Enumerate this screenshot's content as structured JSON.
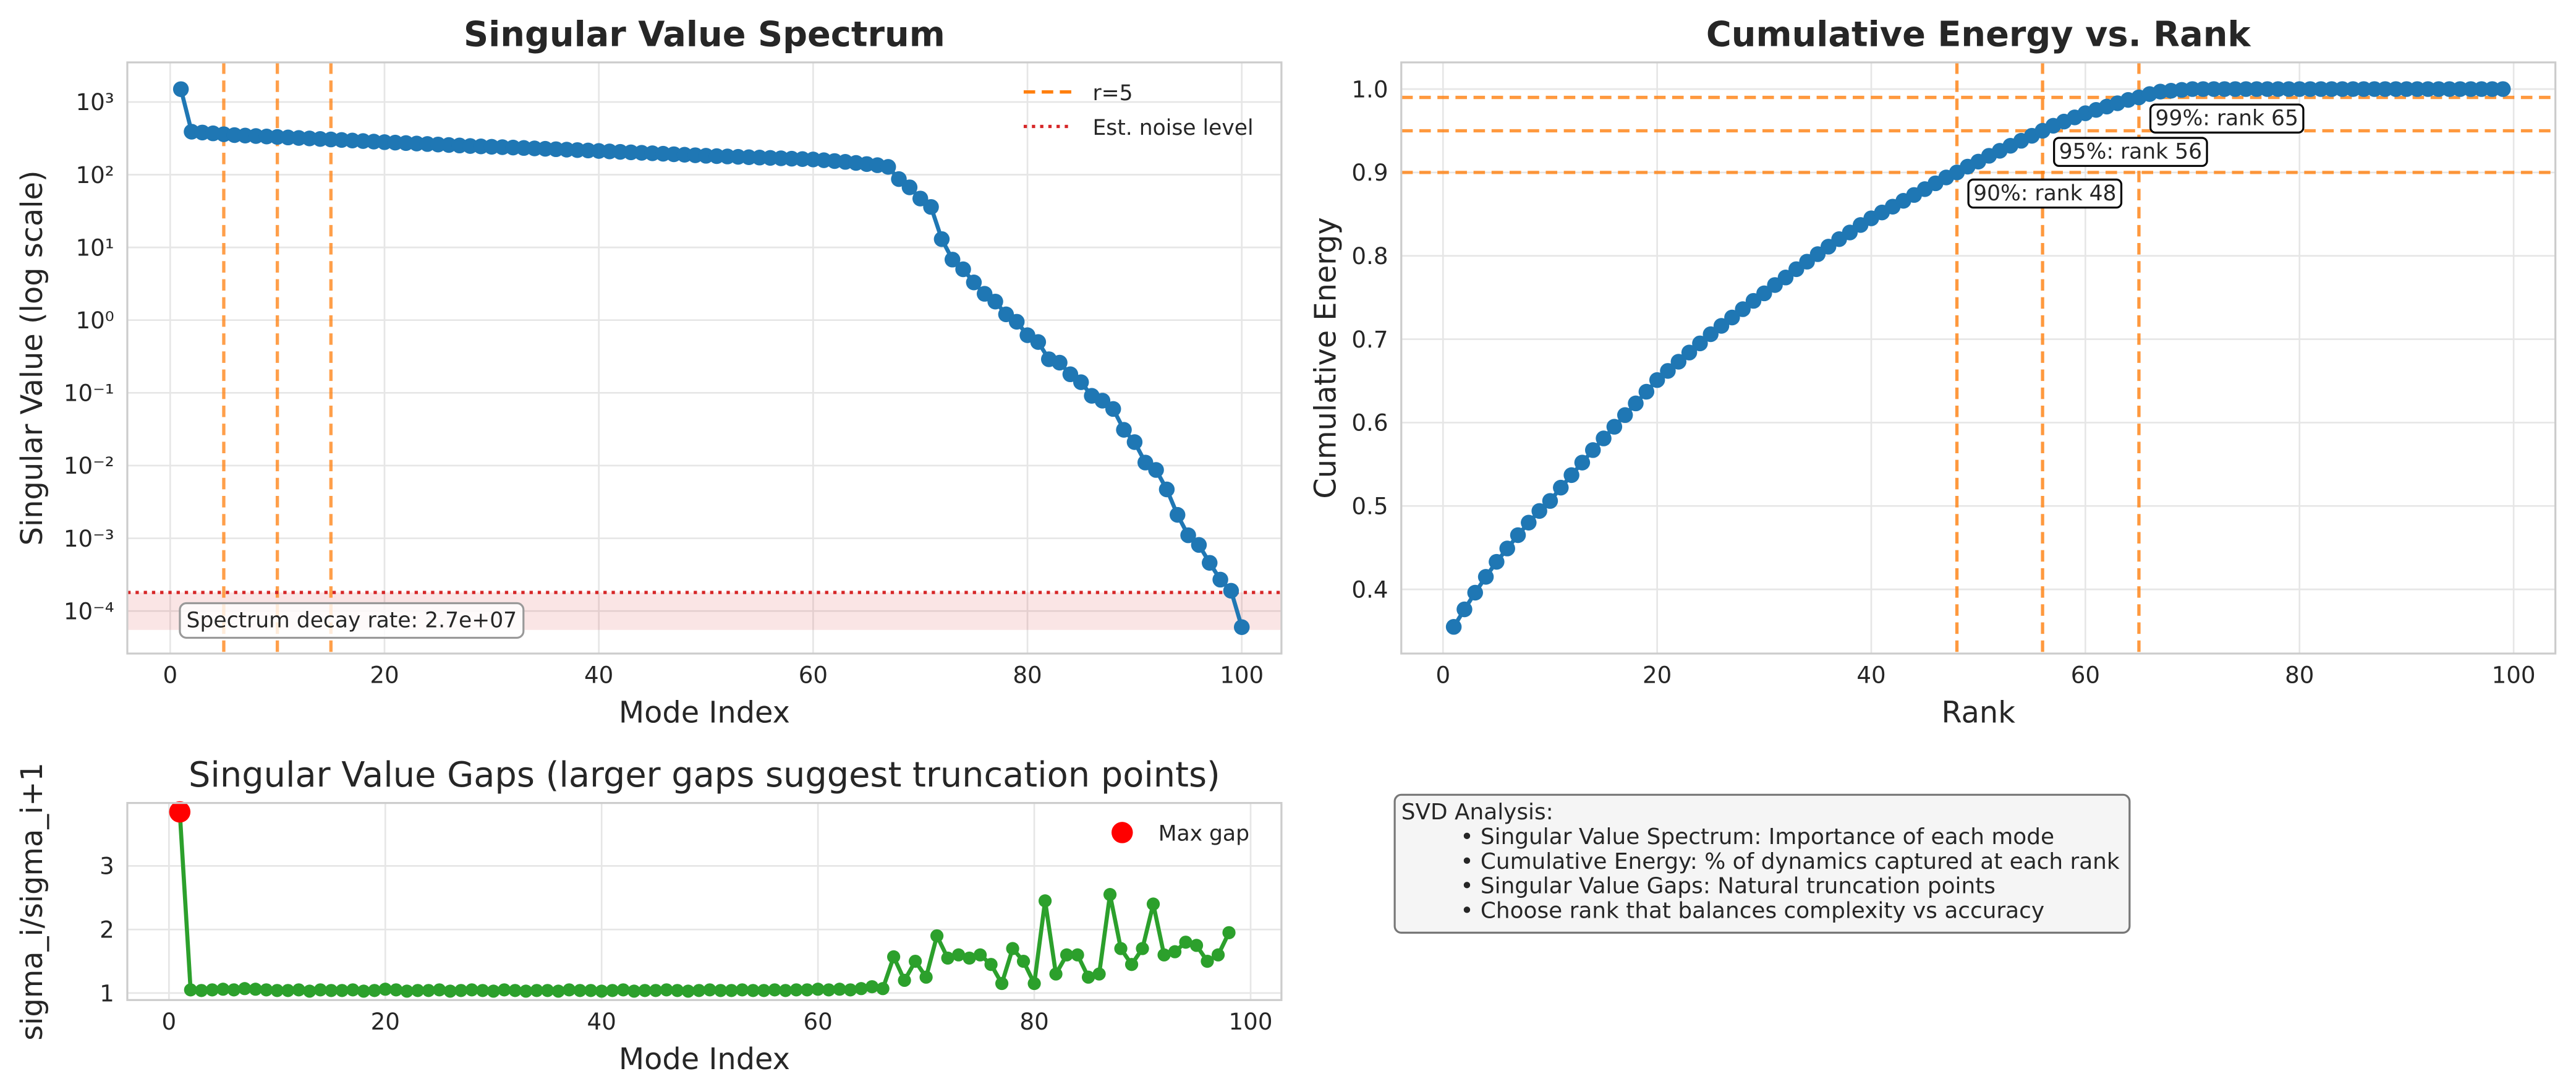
{
  "chart_data": [
    {
      "type": "line",
      "title": "Singular Value Spectrum",
      "xlabel": "Mode Index",
      "ylabel": "Singular Value (log scale)",
      "x": [
        1,
        2,
        3,
        4,
        5,
        6,
        7,
        8,
        9,
        10,
        11,
        12,
        13,
        14,
        15,
        16,
        17,
        18,
        19,
        20,
        21,
        22,
        23,
        24,
        25,
        26,
        27,
        28,
        29,
        30,
        31,
        32,
        33,
        34,
        35,
        36,
        37,
        38,
        39,
        40,
        41,
        42,
        43,
        44,
        45,
        46,
        47,
        48,
        49,
        50,
        51,
        52,
        53,
        54,
        55,
        56,
        57,
        58,
        59,
        60,
        61,
        62,
        63,
        64,
        65,
        66,
        67,
        68,
        69,
        70,
        71,
        72,
        73,
        74,
        75,
        76,
        77,
        78,
        79,
        80,
        81,
        82,
        83,
        84,
        85,
        86,
        87,
        88,
        89,
        90,
        91,
        92,
        93,
        94,
        95,
        96,
        97,
        98,
        99,
        100
      ],
      "series": [
        {
          "color": "#1f77b4",
          "values": [
            1500,
            390,
            380,
            370,
            360,
            350,
            345,
            340,
            335,
            330,
            325,
            320,
            315,
            310,
            305,
            300,
            295,
            290,
            285,
            280,
            276,
            272,
            268,
            264,
            260,
            256,
            252,
            248,
            245,
            242,
            239,
            236,
            233,
            230,
            227,
            224,
            221,
            218,
            215,
            212,
            209,
            206,
            203,
            200,
            197,
            194,
            191,
            188,
            185,
            182,
            180,
            178,
            176,
            174,
            172,
            170,
            168,
            166,
            164,
            162,
            158,
            154,
            150,
            145,
            140,
            135,
            128,
            87,
            67,
            47,
            36,
            13,
            6.8,
            5.0,
            3.3,
            2.3,
            1.8,
            1.2,
            0.95,
            0.62,
            0.5,
            0.29,
            0.26,
            0.18,
            0.14,
            0.091,
            0.078,
            0.06,
            0.031,
            0.021,
            0.011,
            0.0087,
            0.0047,
            0.0021,
            0.0011,
            0.00081,
            0.00046,
            0.00027,
            0.00019,
            6e-05
          ]
        }
      ],
      "yscale": "log",
      "xlim": [
        -4,
        103.7
      ],
      "ylim": [
        2.6e-05,
        3500
      ],
      "xticks": [
        0,
        20,
        40,
        60,
        80,
        100
      ],
      "yticks": [
        {
          "value": 1000,
          "label": "10³"
        },
        {
          "value": 100,
          "label": "10²"
        },
        {
          "value": 10,
          "label": "10¹"
        },
        {
          "value": 1,
          "label": "10⁰"
        },
        {
          "value": 0.1,
          "label": "10⁻¹"
        },
        {
          "value": 0.01,
          "label": "10⁻²"
        },
        {
          "value": 0.001,
          "label": "10⁻³"
        },
        {
          "value": 0.0001,
          "label": "10⁻⁴"
        }
      ],
      "grid": true,
      "legend": "upper right",
      "reference_lines": [
        {
          "orientation": "vertical",
          "value": 5,
          "name": "r=5",
          "color": "#ff7f0e",
          "style": "dashed"
        },
        {
          "orientation": "vertical",
          "value": 10,
          "color": "#ff7f0e",
          "style": "dashed"
        },
        {
          "orientation": "vertical",
          "value": 15,
          "color": "#ff7f0e",
          "style": "dashed"
        },
        {
          "orientation": "horizontal",
          "value": 0.00018,
          "name": "Est. noise level",
          "color": "#d62728",
          "style": "dotted"
        }
      ],
      "shaded_band": {
        "range": [
          5.5e-05,
          0.00018
        ],
        "color": "#d62728"
      },
      "annotation": "Spectrum decay rate: 2.7e+07"
    },
    {
      "type": "line",
      "title": "Cumulative Energy vs. Rank",
      "xlabel": "Rank",
      "ylabel": "Cumulative Energy",
      "x": [
        1,
        2,
        3,
        4,
        5,
        6,
        7,
        8,
        9,
        10,
        11,
        12,
        13,
        14,
        15,
        16,
        17,
        18,
        19,
        20,
        21,
        22,
        23,
        24,
        25,
        26,
        27,
        28,
        29,
        30,
        31,
        32,
        33,
        34,
        35,
        36,
        37,
        38,
        39,
        40,
        41,
        42,
        43,
        44,
        45,
        46,
        47,
        48,
        49,
        50,
        51,
        52,
        53,
        54,
        55,
        56,
        57,
        58,
        59,
        60,
        61,
        62,
        63,
        64,
        65,
        66,
        67,
        68,
        69,
        70,
        71,
        72,
        73,
        74,
        75,
        76,
        77,
        78,
        79,
        80,
        81,
        82,
        83,
        84,
        85,
        86,
        87,
        88,
        89,
        90,
        91,
        92,
        93,
        94,
        95,
        96,
        97,
        98,
        99
      ],
      "series": [
        {
          "color": "#1f77b4",
          "values": [
            0.355,
            0.376,
            0.396,
            0.415,
            0.433,
            0.449,
            0.465,
            0.48,
            0.494,
            0.506,
            0.522,
            0.537,
            0.552,
            0.567,
            0.581,
            0.595,
            0.609,
            0.623,
            0.637,
            0.651,
            0.662,
            0.673,
            0.684,
            0.695,
            0.706,
            0.716,
            0.726,
            0.736,
            0.746,
            0.755,
            0.765,
            0.774,
            0.784,
            0.793,
            0.802,
            0.811,
            0.82,
            0.828,
            0.837,
            0.845,
            0.852,
            0.859,
            0.866,
            0.873,
            0.88,
            0.887,
            0.894,
            0.9,
            0.907,
            0.913,
            0.92,
            0.926,
            0.932,
            0.938,
            0.944,
            0.95,
            0.956,
            0.961,
            0.966,
            0.971,
            0.975,
            0.979,
            0.983,
            0.987,
            0.99,
            0.994,
            0.997,
            0.998,
            0.999,
            1,
            1,
            1,
            1,
            1,
            1,
            1,
            1,
            1,
            1,
            1,
            1,
            1,
            1,
            1,
            1,
            1,
            1,
            1,
            1,
            1,
            1,
            1,
            1,
            1,
            1,
            1,
            1,
            1,
            1
          ]
        }
      ],
      "xlim": [
        -3.9,
        103.9
      ],
      "ylim": [
        0.323,
        1.032
      ],
      "xticks": [
        0,
        20,
        40,
        60,
        80,
        100
      ],
      "yticks": [
        0.4,
        0.5,
        0.6,
        0.7,
        0.8,
        0.9,
        {
          "value": 1,
          "label": "1.0"
        }
      ],
      "grid": true,
      "threshold_color": "#ff7f0e",
      "thresholds": [
        {
          "energy": 0.9,
          "rank": 48,
          "label": "90%: rank 48"
        },
        {
          "energy": 0.95,
          "rank": 56,
          "label": "95%: rank 56"
        },
        {
          "energy": 0.99,
          "rank": 65,
          "label": "99%: rank 65"
        }
      ]
    },
    {
      "type": "line",
      "title": "Singular Value Gaps (larger gaps suggest truncation points)",
      "xlabel": "Mode Index",
      "ylabel": "sigma_i/sigma_i+1",
      "x": [
        1,
        2,
        3,
        4,
        5,
        6,
        7,
        8,
        9,
        10,
        11,
        12,
        13,
        14,
        15,
        16,
        17,
        18,
        19,
        20,
        21,
        22,
        23,
        24,
        25,
        26,
        27,
        28,
        29,
        30,
        31,
        32,
        33,
        34,
        35,
        36,
        37,
        38,
        39,
        40,
        41,
        42,
        43,
        44,
        45,
        46,
        47,
        48,
        49,
        50,
        51,
        52,
        53,
        54,
        55,
        56,
        57,
        58,
        59,
        60,
        61,
        62,
        63,
        64,
        65,
        66,
        67,
        68,
        69,
        70,
        71,
        72,
        73,
        74,
        75,
        76,
        77,
        78,
        79,
        80,
        81,
        82,
        83,
        84,
        85,
        86,
        87,
        88,
        89,
        90,
        91,
        92,
        93,
        94,
        95,
        96,
        97,
        98
      ],
      "series": [
        {
          "color": "#2ca02c",
          "values": [
            3.85,
            1.05,
            1.04,
            1.05,
            1.06,
            1.05,
            1.07,
            1.06,
            1.05,
            1.04,
            1.04,
            1.05,
            1.03,
            1.05,
            1.04,
            1.04,
            1.05,
            1.03,
            1.04,
            1.06,
            1.05,
            1.03,
            1.04,
            1.04,
            1.05,
            1.03,
            1.04,
            1.05,
            1.04,
            1.03,
            1.05,
            1.04,
            1.03,
            1.04,
            1.04,
            1.03,
            1.05,
            1.04,
            1.04,
            1.03,
            1.04,
            1.05,
            1.03,
            1.04,
            1.04,
            1.05,
            1.04,
            1.03,
            1.04,
            1.05,
            1.04,
            1.04,
            1.05,
            1.04,
            1.04,
            1.05,
            1.04,
            1.05,
            1.05,
            1.06,
            1.05,
            1.06,
            1.05,
            1.07,
            1.1,
            1.07,
            1.57,
            1.2,
            1.5,
            1.25,
            1.9,
            1.55,
            1.6,
            1.55,
            1.6,
            1.45,
            1.15,
            1.7,
            1.5,
            1.15,
            2.45,
            1.3,
            1.6,
            1.6,
            1.25,
            1.3,
            2.55,
            1.7,
            1.45,
            1.7,
            2.4,
            1.6,
            1.65,
            1.8,
            1.75,
            1.5,
            1.6,
            1.95
          ]
        }
      ],
      "xlim": [
        -3.85,
        102.85
      ],
      "ylim": [
        0.89,
        3.99
      ],
      "xticks": [
        0,
        20,
        40,
        60,
        80,
        100
      ],
      "yticks": [
        1,
        2,
        3
      ],
      "grid": true,
      "legend": "upper right",
      "max_gap": {
        "name": "Max gap",
        "x": 1,
        "color": "#ff0000"
      }
    }
  ],
  "analysis_box": {
    "title": "SVD Analysis:",
    "items": [
      "• Singular Value Spectrum: Importance of each mode",
      "• Cumulative Energy: % of dynamics captured at each rank",
      "• Singular Value Gaps: Natural truncation points",
      "• Choose rank that balances complexity vs accuracy"
    ]
  }
}
